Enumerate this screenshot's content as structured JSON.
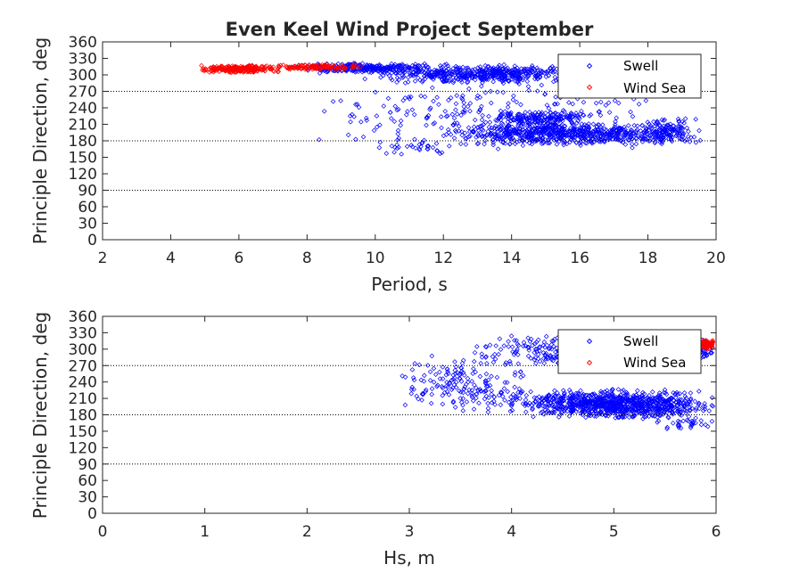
{
  "chart_data": [
    {
      "type": "scatter",
      "title": "Even Keel Wind Project September",
      "xlabel": "Period, s",
      "ylabel": "Principle Direction, deg",
      "xlim": [
        2,
        20
      ],
      "ylim": [
        0,
        360
      ],
      "xticks": [
        "2",
        "4",
        "6",
        "8",
        "10",
        "12",
        "14",
        "16",
        "18",
        "20"
      ],
      "yticks": [
        "0",
        "30",
        "60",
        "90",
        "120",
        "150",
        "180",
        "210",
        "240",
        "270",
        "300",
        "330",
        "360"
      ],
      "reference_lines_y": [
        90,
        180,
        270
      ],
      "grid": false,
      "legend_position": "top-right",
      "series": [
        {
          "name": "Swell",
          "color": "#0000ff",
          "marker": "diamond",
          "clusters": [
            {
              "x": [
                7.5,
                12
              ],
              "y": [
                302,
                322
              ],
              "n": 260
            },
            {
              "x": [
                9.5,
                17.5
              ],
              "y": [
                283,
                320
              ],
              "n": 520
            },
            {
              "x": [
                12,
                19.5
              ],
              "y": [
                170,
                215
              ],
              "n": 680
            },
            {
              "x": [
                13.5,
                16.5
              ],
              "y": [
                205,
                235
              ],
              "n": 160
            },
            {
              "x": [
                8,
                19
              ],
              "y": [
                160,
                300
              ],
              "n": 240
            },
            {
              "x": [
                17.8,
                19.6
              ],
              "y": [
                172,
                222
              ],
              "n": 90
            },
            {
              "x": [
                10,
                12.5
              ],
              "y": [
                150,
                180
              ],
              "n": 30
            }
          ]
        },
        {
          "name": "Wind Sea",
          "color": "#ff0000",
          "marker": "diamond",
          "clusters": [
            {
              "x": [
                4.7,
                7.2
              ],
              "y": [
                303,
                318
              ],
              "n": 240
            },
            {
              "x": [
                7.0,
                9.6
              ],
              "y": [
                308,
                320
              ],
              "n": 120
            }
          ]
        }
      ]
    },
    {
      "type": "scatter",
      "title": "",
      "xlabel": "Hs, m",
      "ylabel": "Principle Direction, deg",
      "xlim": [
        0,
        6
      ],
      "ylim": [
        0,
        360
      ],
      "xticks": [
        "0",
        "1",
        "2",
        "3",
        "4",
        "5",
        "6"
      ],
      "yticks": [
        "0",
        "30",
        "60",
        "90",
        "120",
        "150",
        "180",
        "210",
        "240",
        "270",
        "300",
        "330",
        "360"
      ],
      "reference_lines_y": [
        90,
        180,
        270
      ],
      "grid": false,
      "legend_position": "top-right",
      "series": [
        {
          "name": "Swell",
          "color": "#0000ff",
          "marker": "diamond",
          "clusters": [
            {
              "x": [
                4.1,
                6.0
              ],
              "y": [
                172,
                222
              ],
              "n": 680
            },
            {
              "x": [
                3.5,
                6.0
              ],
              "y": [
                180,
                230
              ],
              "n": 260
            },
            {
              "x": [
                3.6,
                6.0
              ],
              "y": [
                268,
                325
              ],
              "n": 420
            },
            {
              "x": [
                2.8,
                4.2
              ],
              "y": [
                185,
                290
              ],
              "n": 160
            },
            {
              "x": [
                5.4,
                6.0
              ],
              "y": [
                150,
                175
              ],
              "n": 30
            },
            {
              "x": [
                5.6,
                6.0
              ],
              "y": [
                280,
                320
              ],
              "n": 120
            }
          ]
        },
        {
          "name": "Wind Sea",
          "color": "#ff0000",
          "marker": "diamond",
          "clusters": [
            {
              "x": [
                5.82,
                5.99
              ],
              "y": [
                300,
                320
              ],
              "n": 70
            }
          ]
        }
      ]
    }
  ]
}
